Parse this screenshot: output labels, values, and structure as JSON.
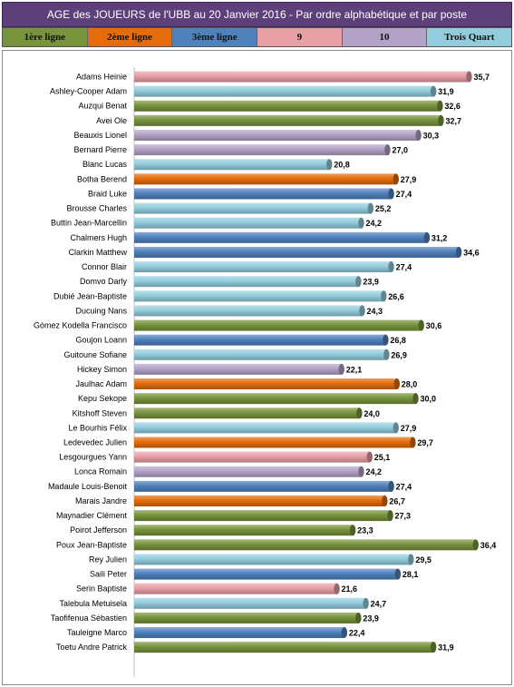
{
  "title": "AGE des JOUEURS de l'UBB au 20 Janvier 2016 - Par ordre alphabétique et par poste",
  "legend": [
    {
      "label": "1ère ligne",
      "color": "#77933c"
    },
    {
      "label": "2ème ligne",
      "color": "#e46c0a"
    },
    {
      "label": "3ème ligne",
      "color": "#4f81bd"
    },
    {
      "label": "9",
      "color": "#e6a0a6"
    },
    {
      "label": "10",
      "color": "#b3a2c7"
    },
    {
      "label": "Trois Quart",
      "color": "#93cddd"
    }
  ],
  "chart_data": {
    "type": "bar",
    "orientation": "horizontal",
    "xlim": [
      0,
      37
    ],
    "grid": false,
    "categories": [
      "Adams Heinie",
      "Ashley-Cooper Adam",
      "Auzqui Benat",
      "Avei Ole",
      "Beauxis Lionel",
      "Bernard Pierre",
      "Blanc Lucas",
      "Botha Berend",
      "Braid Luke",
      "Brousse Charles",
      "Buttin Jean-Marcellin",
      "Chalmers Hugh",
      "Clarkin Matthew",
      "Connor Blair",
      "Domvo Darly",
      "Dubié Jean-Baptiste",
      "Ducuing Nans",
      "Gómez Kodella Francisco",
      "Goujon Loann",
      "Guitoune Sofiane",
      "Hickey Simon",
      "Jaulhac Adam",
      "Kepu Sekope",
      "Kitshoff Steven",
      "Le Bourhis Félix",
      "Ledevedec Julien",
      "Lesgourgues Yann",
      "Lonca Romain",
      "Madaule Louis-Benoit",
      "Marais Jandre",
      "Maynadier Clément",
      "Poirot Jefferson",
      "Poux Jean-Baptiste",
      "Rey Julien",
      "Saili Peter",
      "Serin Baptiste",
      "Talebula Metuisela",
      "Taofifenua Sébastien",
      "Tauleigne Marco",
      "Toetu Andre Patrick"
    ],
    "values": [
      35.7,
      31.9,
      32.6,
      32.7,
      30.3,
      27.0,
      20.8,
      27.9,
      27.4,
      25.2,
      24.2,
      31.2,
      34.6,
      27.4,
      23.9,
      26.6,
      24.3,
      30.6,
      26.8,
      26.9,
      22.1,
      28.0,
      30.0,
      24.0,
      27.9,
      29.7,
      25.1,
      24.2,
      27.4,
      26.7,
      27.3,
      23.3,
      36.4,
      29.5,
      28.1,
      21.6,
      24.7,
      23.9,
      22.4,
      31.9
    ],
    "value_labels": [
      "35,7",
      "31,9",
      "32,6",
      "32,7",
      "30,3",
      "27,0",
      "20,8",
      "27,9",
      "27,4",
      "25,2",
      "24,2",
      "31,2",
      "34,6",
      "27,4",
      "23,9",
      "26,6",
      "24,3",
      "30,6",
      "26,8",
      "26,9",
      "22,1",
      "28,0",
      "30,0",
      "24,0",
      "27,9",
      "29,7",
      "25,1",
      "24,2",
      "27,4",
      "26,7",
      "27,3",
      "23,3",
      "36,4",
      "29,5",
      "28,1",
      "21,6",
      "24,7",
      "23,9",
      "22,4",
      "31,9"
    ],
    "positions": [
      "9",
      "Trois Quart",
      "1ère ligne",
      "1ère ligne",
      "10",
      "10",
      "Trois Quart",
      "2ème ligne",
      "3ème ligne",
      "Trois Quart",
      "Trois Quart",
      "3ème ligne",
      "3ème ligne",
      "Trois Quart",
      "Trois Quart",
      "Trois Quart",
      "Trois Quart",
      "1ère ligne",
      "3ème ligne",
      "Trois Quart",
      "10",
      "2ème ligne",
      "1ère ligne",
      "1ère ligne",
      "Trois Quart",
      "2ème ligne",
      "9",
      "10",
      "3ème ligne",
      "2ème ligne",
      "1ère ligne",
      "1ère ligne",
      "1ère ligne",
      "Trois Quart",
      "3ème ligne",
      "9",
      "Trois Quart",
      "1ère ligne",
      "3ème ligne",
      "1ère ligne"
    ]
  }
}
